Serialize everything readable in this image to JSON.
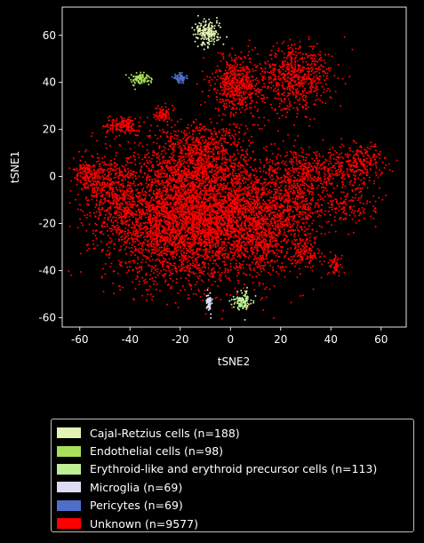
{
  "chart_data": {
    "type": "scatter",
    "xlabel": "tSNE2",
    "ylabel": "tSNE1",
    "xlim": [
      -67,
      70
    ],
    "ylim": [
      -64,
      72
    ],
    "xticks": [
      -60,
      -40,
      -20,
      0,
      20,
      40,
      60
    ],
    "yticks": [
      -60,
      -40,
      -20,
      0,
      20,
      40,
      60
    ],
    "grid": false,
    "legend_position": "below",
    "series": [
      {
        "name": "Cajal-Retzius cells (n=188)",
        "color": "#e2f3b4",
        "clusters": [
          {
            "cx": -9,
            "cy": 61,
            "sx": 2.5,
            "sy": 2.5,
            "n": 188
          }
        ]
      },
      {
        "name": "Endothelial cells (n=98)",
        "color": "#a8e05a",
        "clusters": [
          {
            "cx": -36,
            "cy": 41.5,
            "sx": 1.8,
            "sy": 1.2,
            "n": 98
          }
        ]
      },
      {
        "name": "Erythroid-like and erythroid precursor cells (n=113)",
        "color": "#bfee96",
        "clusters": [
          {
            "cx": 5,
            "cy": -53,
            "sx": 1.8,
            "sy": 2.0,
            "n": 113
          }
        ]
      },
      {
        "name": "Microglia (n=69)",
        "color": "#dcdcf2",
        "clusters": [
          {
            "cx": -8.5,
            "cy": -53.5,
            "sx": 0.5,
            "sy": 1.8,
            "n": 69
          }
        ]
      },
      {
        "name": "Pericytes (n=69)",
        "color": "#4e6ec8",
        "clusters": [
          {
            "cx": -20,
            "cy": 42,
            "sx": 1.2,
            "sy": 1.0,
            "n": 69
          }
        ]
      },
      {
        "name": "Unknown (n=9577)",
        "color": "#ff0000",
        "clusters": [
          {
            "cx": -22,
            "cy": -18,
            "sx": 14,
            "sy": 13,
            "n": 3200
          },
          {
            "cx": 5,
            "cy": -18,
            "sx": 12,
            "sy": 12,
            "n": 2000
          },
          {
            "cx": -12,
            "cy": 8,
            "sx": 10,
            "sy": 8,
            "n": 900
          },
          {
            "cx": -48,
            "cy": -5,
            "sx": 6,
            "sy": 7,
            "n": 500
          },
          {
            "cx": -57,
            "cy": 1,
            "sx": 2.5,
            "sy": 2.5,
            "n": 120
          },
          {
            "cx": -43,
            "cy": 21.5,
            "sx": 3.5,
            "sy": 1.8,
            "n": 160
          },
          {
            "cx": -27,
            "cy": 27,
            "sx": 1.5,
            "sy": 1.8,
            "n": 80
          },
          {
            "cx": 3,
            "cy": 39,
            "sx": 5,
            "sy": 6,
            "n": 550
          },
          {
            "cx": 26,
            "cy": 42,
            "sx": 7,
            "sy": 7,
            "n": 650
          },
          {
            "cx": 26,
            "cy": -10,
            "sx": 7,
            "sy": 10,
            "n": 500
          },
          {
            "cx": 37,
            "cy": 3,
            "sx": 9,
            "sy": 4,
            "n": 300
          },
          {
            "cx": 52,
            "cy": 6,
            "sx": 5,
            "sy": 4,
            "n": 200
          },
          {
            "cx": 48,
            "cy": -12,
            "sx": 6,
            "sy": 5,
            "n": 150
          },
          {
            "cx": 30,
            "cy": -33,
            "sx": 3,
            "sy": 3,
            "n": 100
          },
          {
            "cx": 42,
            "cy": -38,
            "sx": 1.3,
            "sy": 2,
            "n": 60
          },
          {
            "cx": 13,
            "cy": -30,
            "sx": 3,
            "sy": 5,
            "n": 107
          }
        ]
      }
    ]
  }
}
